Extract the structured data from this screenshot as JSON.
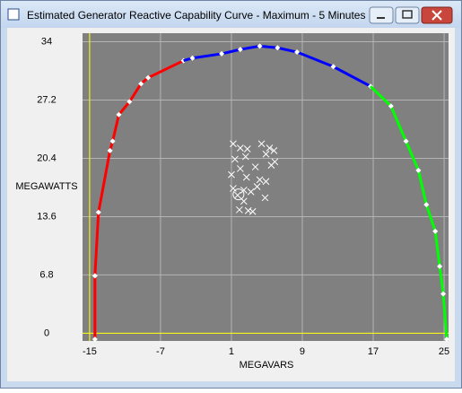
{
  "chart_data": {
    "type": "line",
    "title": "Estimated Generator Reactive Capability Curve - Maximum - 5 Minutes",
    "x_label": "MEGAVARS",
    "y_label": "MEGAWATTS",
    "xlim": [
      -15.8,
      25.5
    ],
    "ylim": [
      -0.9,
      35
    ],
    "xticks": [
      -15,
      -7,
      1,
      9,
      17,
      25
    ],
    "yticks": [
      0,
      6.8,
      13.6,
      20.4,
      27.2,
      34
    ],
    "grid": true,
    "axis_line_color": "#ffff00",
    "series": [
      {
        "color": "#ff0000",
        "x": [
          -14.4,
          -14.4,
          -14.0,
          -12.7,
          -12.4,
          -11.7,
          -10.5,
          -9.2,
          -8.4,
          -4.4
        ],
        "values": [
          -0.7,
          6.7,
          14.1,
          21.3,
          22.4,
          25.5,
          27.0,
          29.1,
          29.8,
          31.8
        ]
      },
      {
        "color": "#0000ff",
        "x": [
          -3.4,
          -0.1,
          2.0,
          4.2,
          6.2,
          8.4,
          12.5,
          16.7
        ],
        "values": [
          32.1,
          32.6,
          33.1,
          33.5,
          33.3,
          32.8,
          31.1,
          28.8
        ]
      },
      {
        "color": "#00ff00",
        "x": [
          19.0,
          20.7,
          22.1,
          23.0,
          24.0,
          24.5,
          24.9,
          25.3
        ],
        "values": [
          26.5,
          22.4,
          19.0,
          15.0,
          11.9,
          7.8,
          4.6,
          -0.7
        ]
      }
    ],
    "scatter": {
      "color": "#ffffff",
      "x": [
        1.2,
        2.0,
        2.8,
        2.6,
        1.4,
        4.4,
        5.3,
        5.8,
        4.9,
        5.9,
        5.5,
        3.7,
        2.0,
        1.0,
        2.7,
        4.2,
        4.9,
        3.9,
        1.2,
        2.4,
        3.2,
        1.7,
        2.4,
        4.8,
        2.9,
        3.4,
        1.9
      ],
      "y": [
        22.1,
        21.6,
        21.5,
        20.6,
        20.3,
        22.1,
        21.6,
        21.3,
        20.9,
        20.0,
        19.6,
        19.4,
        19.2,
        18.5,
        18.2,
        17.9,
        17.7,
        17.1,
        16.9,
        16.7,
        16.5,
        16.1,
        15.4,
        15.8,
        14.3,
        14.2,
        14.4
      ]
    },
    "marker_point": {
      "x": 1.8,
      "y": 16.2
    }
  }
}
